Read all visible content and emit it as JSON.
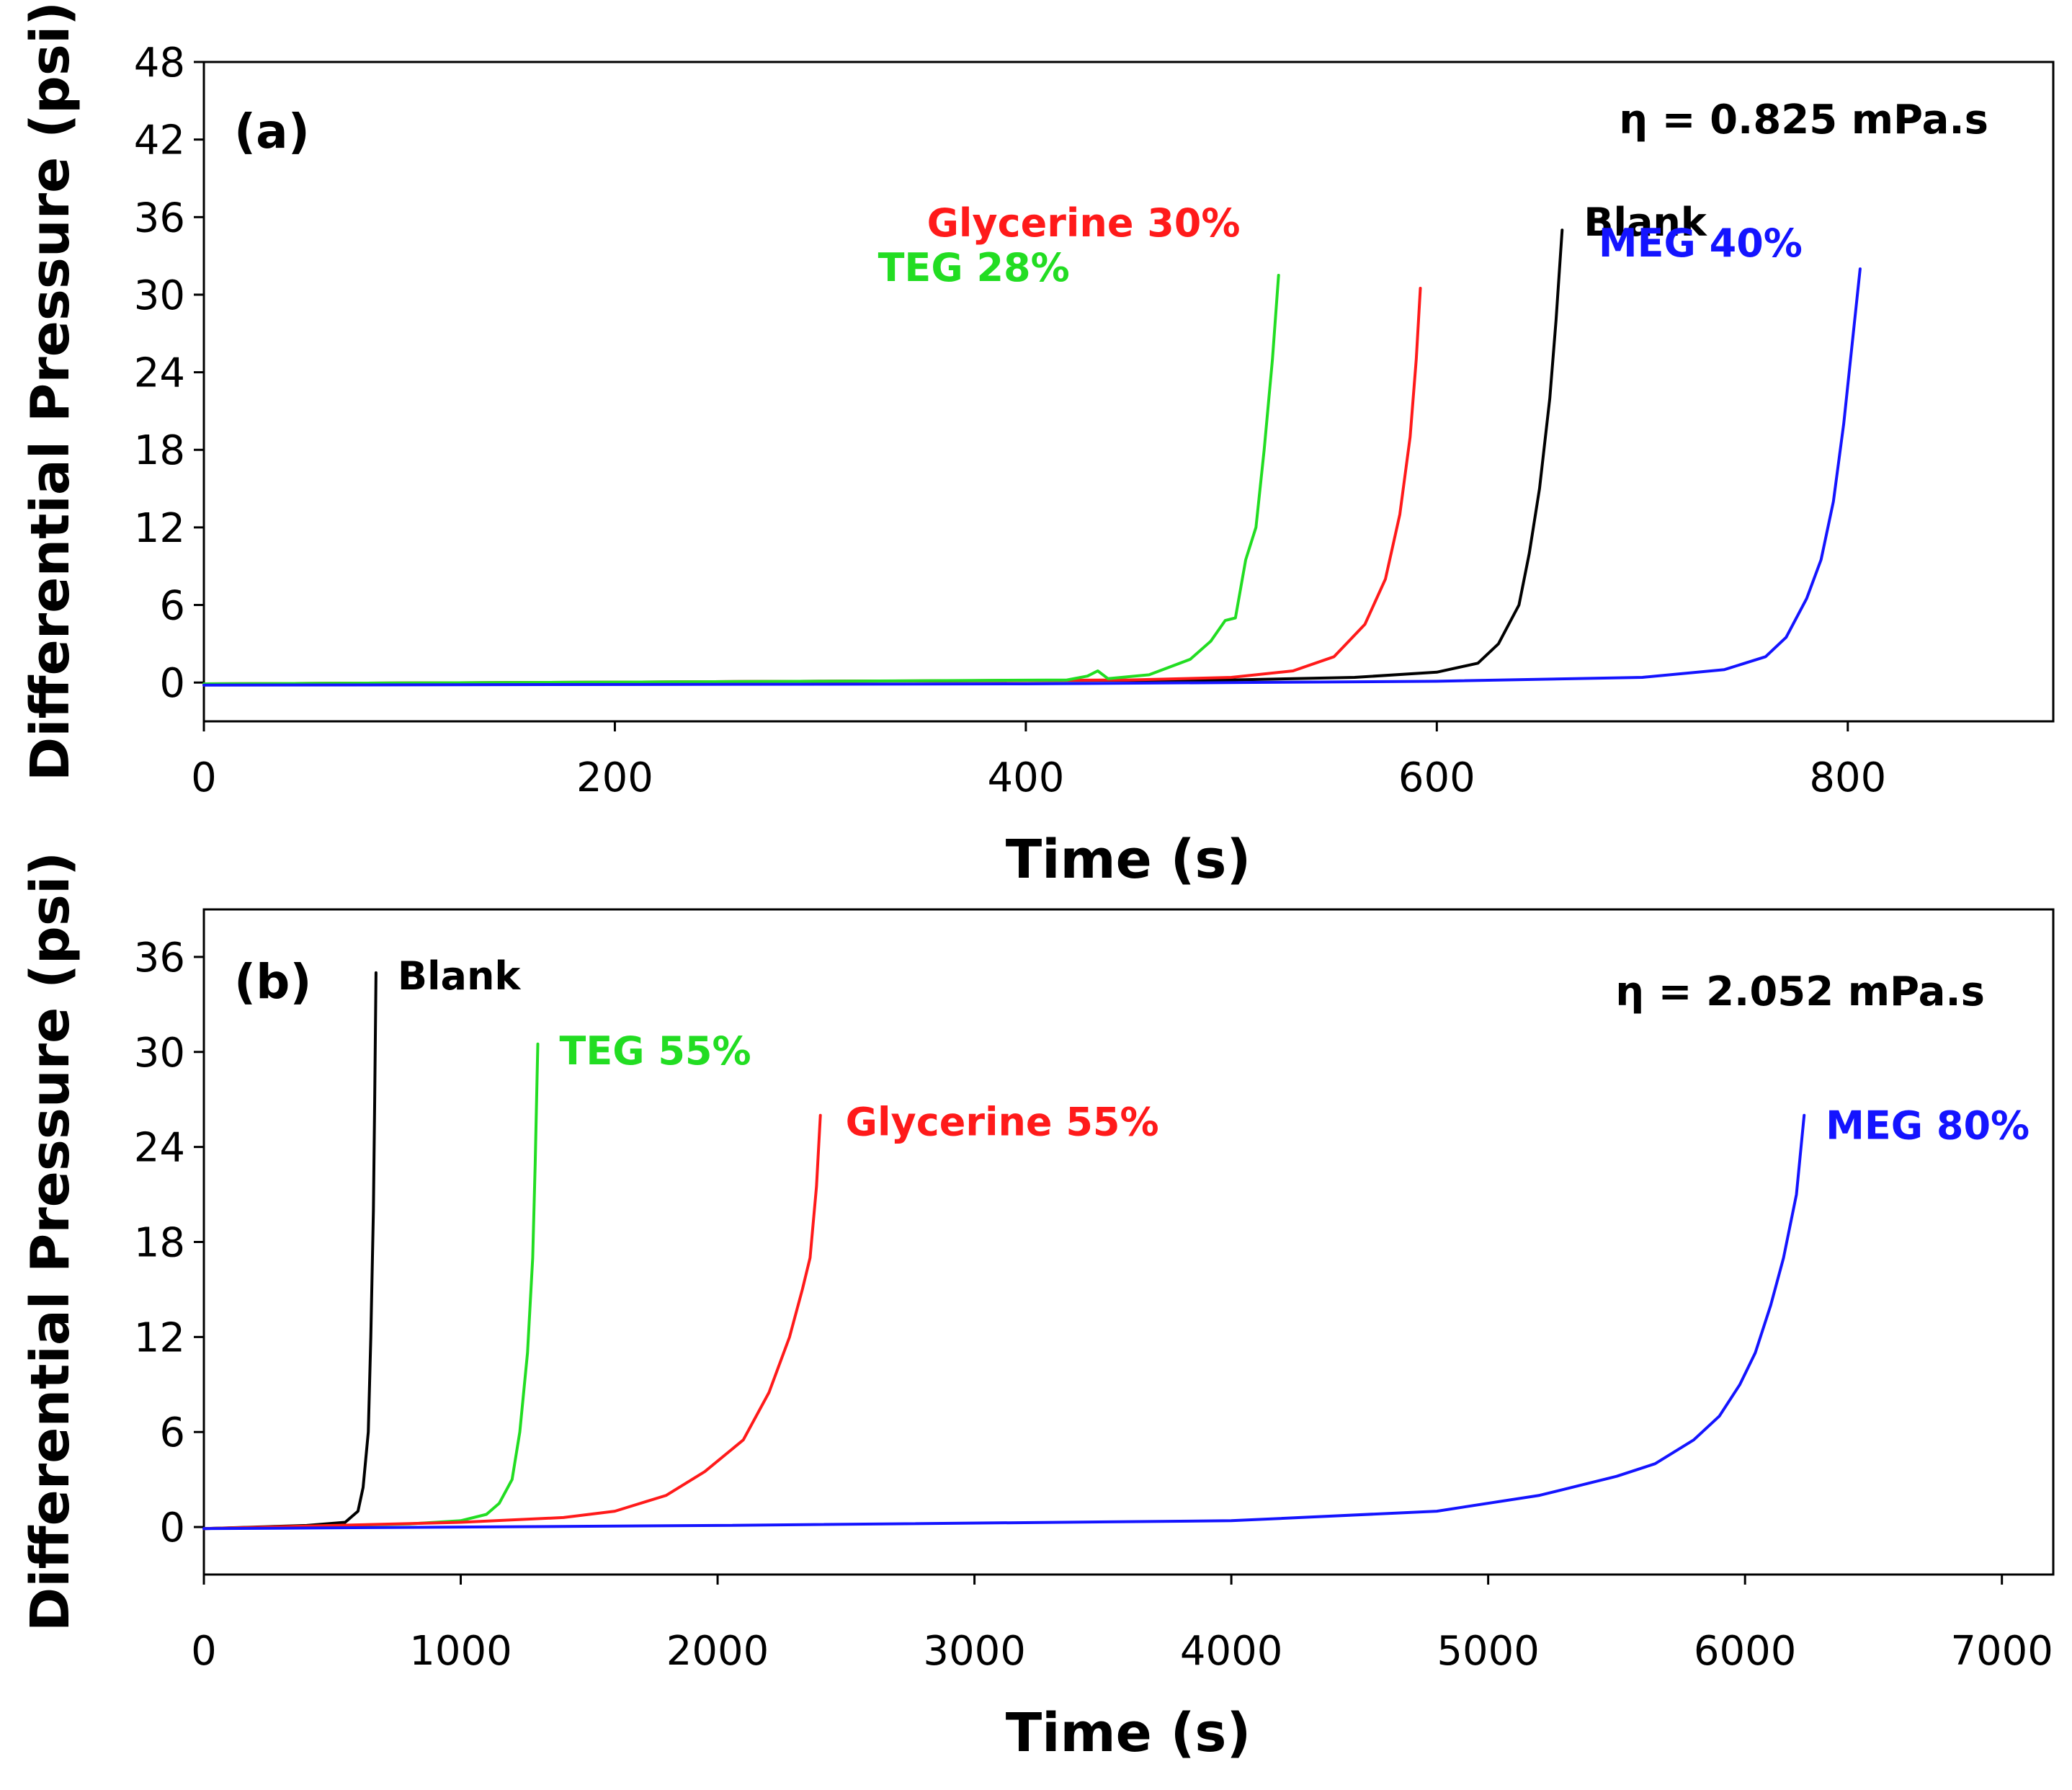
{
  "chart_data": [
    {
      "type": "line",
      "panel_label": "(a)",
      "annotation": "η = 0.825 mPa.s",
      "xlabel": "Time (s)",
      "ylabel": "Differential Pressure (psi)",
      "xlim": [
        0,
        900
      ],
      "ylim": [
        -3,
        48
      ],
      "xticks": [
        0,
        200,
        400,
        600,
        800
      ],
      "yticks": [
        0,
        6,
        12,
        18,
        24,
        30,
        36,
        42,
        48
      ],
      "series": [
        {
          "name": "Blank",
          "label": "Blank",
          "color": "#000000",
          "x": [
            0,
            300,
            500,
            560,
            600,
            620,
            630,
            640,
            645,
            650,
            655,
            658,
            661
          ],
          "y": [
            -0.1,
            0.1,
            0.2,
            0.4,
            0.8,
            1.5,
            3.0,
            6.0,
            10.0,
            15.0,
            22.0,
            28.0,
            35.0
          ]
        },
        {
          "name": "Glycerine 30%",
          "label": "Glycerine 30%",
          "color": "#ff1a1a",
          "x": [
            0,
            300,
            450,
            500,
            530,
            550,
            565,
            575,
            582,
            587,
            590,
            592
          ],
          "y": [
            -0.1,
            0.1,
            0.2,
            0.4,
            0.9,
            2.0,
            4.5,
            8.0,
            13.0,
            19.0,
            25.0,
            30.5
          ]
        },
        {
          "name": "TEG 28%",
          "label": "TEG 28%",
          "color": "#22dd22",
          "x": [
            0,
            300,
            420,
            430,
            435,
            440,
            460,
            480,
            490,
            497,
            502,
            507,
            512,
            516,
            520,
            523
          ],
          "y": [
            -0.1,
            0.1,
            0.2,
            0.5,
            0.9,
            0.3,
            0.6,
            1.8,
            3.2,
            4.8,
            5.0,
            9.5,
            12.0,
            18.0,
            25.0,
            31.5
          ]
        },
        {
          "name": "MEG 40%",
          "label": "MEG 40%",
          "color": "#1414ff",
          "x": [
            0,
            400,
            600,
            700,
            740,
            760,
            770,
            780,
            787,
            793,
            798,
            802,
            806
          ],
          "y": [
            -0.2,
            -0.1,
            0.1,
            0.4,
            1.0,
            2.0,
            3.5,
            6.5,
            9.5,
            14.0,
            20.0,
            26.0,
            32.0
          ]
        }
      ]
    },
    {
      "type": "line",
      "panel_label": "(b)",
      "annotation": "η = 2.052 mPa.s",
      "xlabel": "Time (s)",
      "ylabel": "Differential Pressure (psi)",
      "xlim": [
        0,
        7200
      ],
      "ylim": [
        -3,
        39
      ],
      "xticks": [
        0,
        1000,
        2000,
        3000,
        4000,
        5000,
        6000,
        7000
      ],
      "yticks": [
        0,
        6,
        12,
        18,
        24,
        30,
        36
      ],
      "series": [
        {
          "name": "Blank",
          "label": "Blank",
          "color": "#000000",
          "x": [
            0,
            400,
            550,
            600,
            620,
            640,
            650,
            660,
            665,
            670
          ],
          "y": [
            -0.1,
            0.1,
            0.3,
            1.0,
            2.5,
            6.0,
            12.0,
            20.0,
            27.0,
            35.0
          ]
        },
        {
          "name": "TEG 55%",
          "label": "TEG 55%",
          "color": "#22dd22",
          "x": [
            0,
            800,
            1000,
            1100,
            1150,
            1200,
            1230,
            1260,
            1280,
            1290,
            1300
          ],
          "y": [
            -0.1,
            0.2,
            0.4,
            0.8,
            1.5,
            3.0,
            6.0,
            11.0,
            17.0,
            23.0,
            30.5
          ]
        },
        {
          "name": "Glycerine 55%",
          "label": "Glycerine 55%",
          "color": "#ff1a1a",
          "x": [
            0,
            1000,
            1400,
            1600,
            1800,
            1950,
            2100,
            2200,
            2280,
            2330,
            2360,
            2385,
            2400
          ],
          "y": [
            -0.1,
            0.3,
            0.6,
            1.0,
            2.0,
            3.5,
            5.5,
            8.5,
            12.0,
            15.0,
            17.0,
            21.5,
            26.0
          ]
        },
        {
          "name": "MEG 80%",
          "label": "MEG 80%",
          "color": "#1414ff",
          "x": [
            0,
            2000,
            4000,
            4800,
            5200,
            5500,
            5650,
            5800,
            5900,
            5980,
            6040,
            6100,
            6150,
            6200,
            6230
          ],
          "y": [
            -0.1,
            0.1,
            0.4,
            1.0,
            2.0,
            3.2,
            4.0,
            5.5,
            7.0,
            9.0,
            11.0,
            14.0,
            17.0,
            21.0,
            26.0
          ]
        }
      ]
    }
  ]
}
